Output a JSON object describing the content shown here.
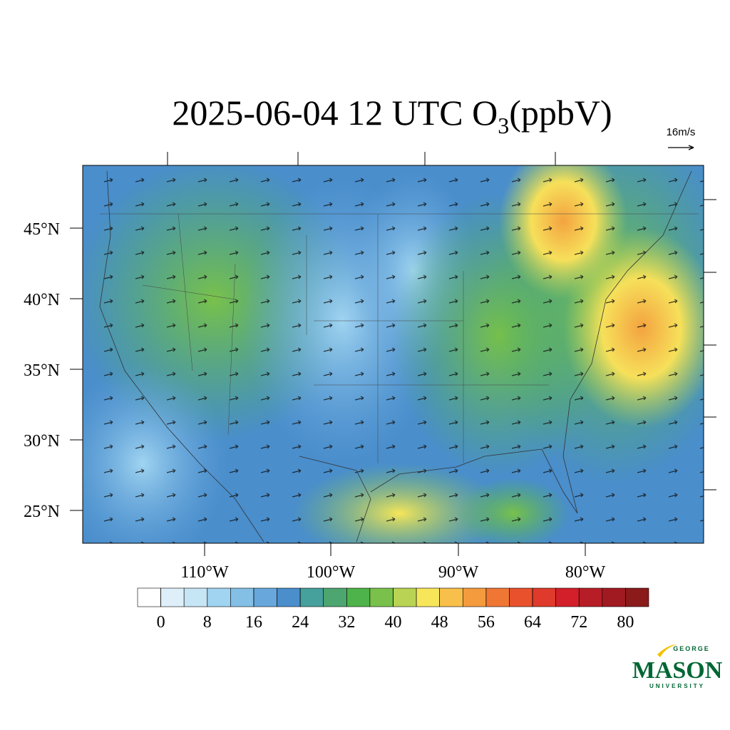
{
  "header": {
    "title": {
      "main": "2025-06-04 12 UTC O",
      "subscript": "3",
      "unit": "(ppbV)"
    },
    "vector_reference": "16m/s"
  },
  "map": {
    "lat_labels": [
      "45°N",
      "40°N",
      "35°N",
      "30°N",
      "25°N"
    ],
    "lon_labels": [
      "110°W",
      "100°W",
      "90°W",
      "80°W"
    ]
  },
  "colorbar": {
    "ticks": [
      0,
      8,
      16,
      24,
      32,
      40,
      48,
      56,
      64,
      72,
      80
    ],
    "colors": [
      "#ffffff",
      "#deeff9",
      "#c6e5f5",
      "#a0d4f1",
      "#84bfe6",
      "#67a7dc",
      "#4a8ecc",
      "#46a09c",
      "#4da56f",
      "#4db34a",
      "#79c14b",
      "#b9d454",
      "#f7e65a",
      "#f8c04a",
      "#f49b3e",
      "#f07633",
      "#e9512c",
      "#df3a2b",
      "#d21f2a",
      "#b71d26",
      "#a11a21",
      "#8b1a1b"
    ]
  },
  "logo": {
    "top": "GEORGE",
    "main": "MASON",
    "bottom": "UNIVERSITY"
  }
}
